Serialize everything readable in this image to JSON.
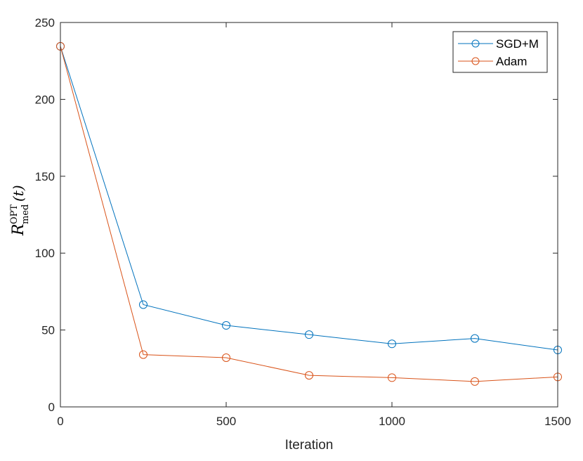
{
  "chart_data": {
    "type": "line",
    "xlabel": "Iteration",
    "ylabel": {
      "main": "R",
      "sup": "OPT",
      "sub": "med",
      "arg": "(t)"
    },
    "xlim": [
      0,
      1500
    ],
    "ylim": [
      0,
      250
    ],
    "xticks": [
      0,
      500,
      1000,
      1500
    ],
    "yticks": [
      0,
      50,
      100,
      150,
      200,
      250
    ],
    "grid": false,
    "legend_position": "top-right",
    "x": [
      0,
      250,
      500,
      750,
      1000,
      1250,
      1500
    ],
    "series": [
      {
        "name": "SGD+M",
        "color": "#0072bd",
        "values": [
          234.5,
          66.5,
          53,
          47,
          41,
          44.5,
          37
        ]
      },
      {
        "name": "Adam",
        "color": "#d95319",
        "values": [
          234.5,
          34,
          32,
          20.5,
          19,
          16.5,
          19.5
        ]
      }
    ]
  }
}
